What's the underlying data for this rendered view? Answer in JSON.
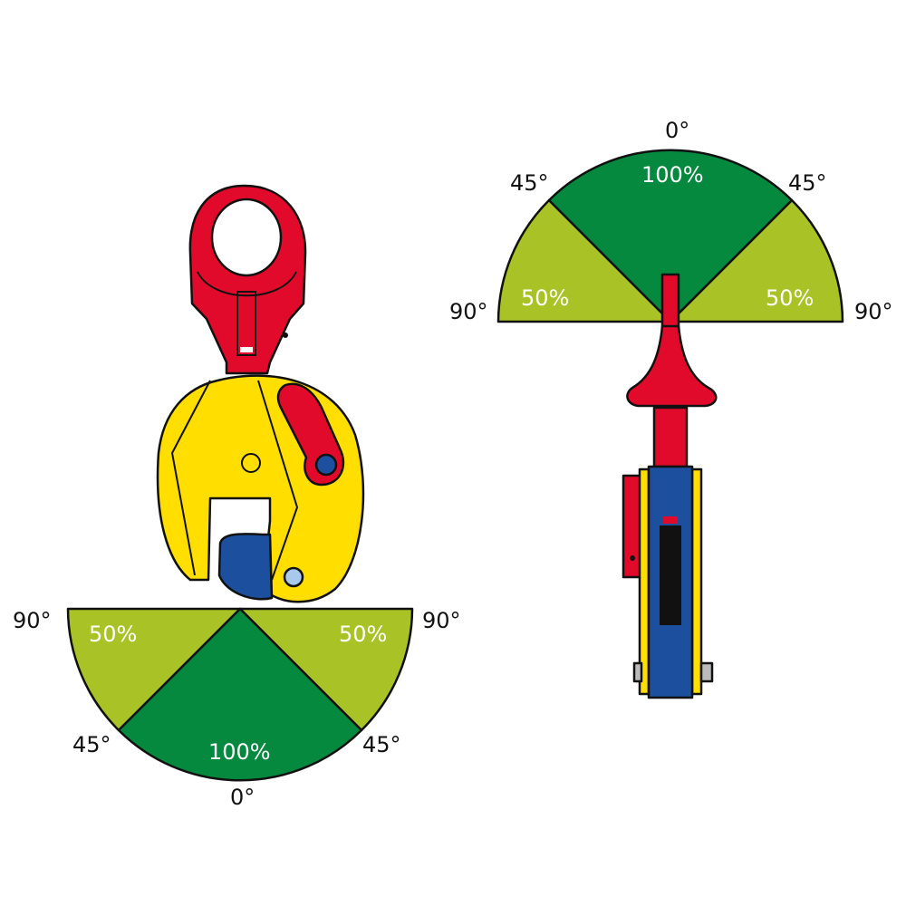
{
  "colors": {
    "full_capacity": "#04893f",
    "half_capacity": "#a9c326",
    "clamp_red": "#e20a2b",
    "clamp_yellow": "#ffde00",
    "clamp_blue": "#1c4f9e"
  },
  "left_diagram": {
    "angles": {
      "left_horizontal": "90°",
      "right_horizontal": "90°",
      "left_diagonal": "45°",
      "right_diagonal": "45°",
      "bottom": "0°"
    },
    "capacities": {
      "left": "50%",
      "right": "50%",
      "center": "100%"
    }
  },
  "right_diagram": {
    "angles": {
      "left_horizontal": "90°",
      "right_horizontal": "90°",
      "left_diagonal": "45°",
      "right_diagonal": "45°",
      "top": "0°"
    },
    "capacities": {
      "left": "50%",
      "right": "50%",
      "center": "100%"
    }
  }
}
